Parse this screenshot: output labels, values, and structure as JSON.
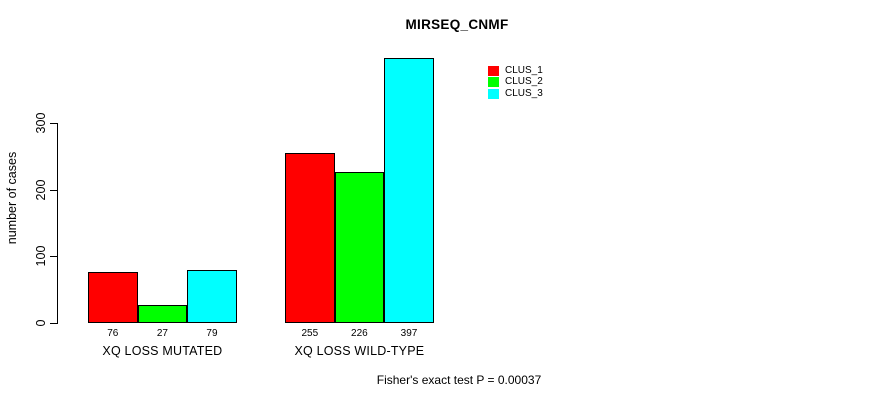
{
  "figure": {
    "title": "MIRSEQ_CNMF",
    "y_axis_label": "number of cases",
    "footer": "Fisher's exact test P = 0.00037"
  },
  "chart_data": {
    "type": "bar",
    "title": "MIRSEQ_CNMF",
    "xlabel": "",
    "ylabel": "number of cases",
    "categories": [
      "XQ LOSS MUTATED",
      "XQ LOSS WILD-TYPE"
    ],
    "series": [
      {
        "name": "CLUS_1",
        "color": "#ff0000",
        "values": [
          76,
          255
        ]
      },
      {
        "name": "CLUS_2",
        "color": "#00ff00",
        "values": [
          27,
          226
        ]
      },
      {
        "name": "CLUS_3",
        "color": "#00ffff",
        "values": [
          79,
          397
        ]
      }
    ],
    "bar_value_labels": [
      [
        "76",
        "27",
        "79"
      ],
      [
        "255",
        "226",
        "397"
      ]
    ],
    "yticks": [
      0,
      100,
      200,
      300
    ],
    "ylim": [
      0,
      400
    ],
    "grid": false,
    "legend_position": "top-right",
    "legend_entries": [
      "CLUS_1",
      "CLUS_2",
      "CLUS_3"
    ],
    "annotation": "Fisher's exact test P = 0.00037",
    "bar_border_color": "#000000",
    "axis_color": "#000000",
    "background_color": "#ffffff"
  }
}
